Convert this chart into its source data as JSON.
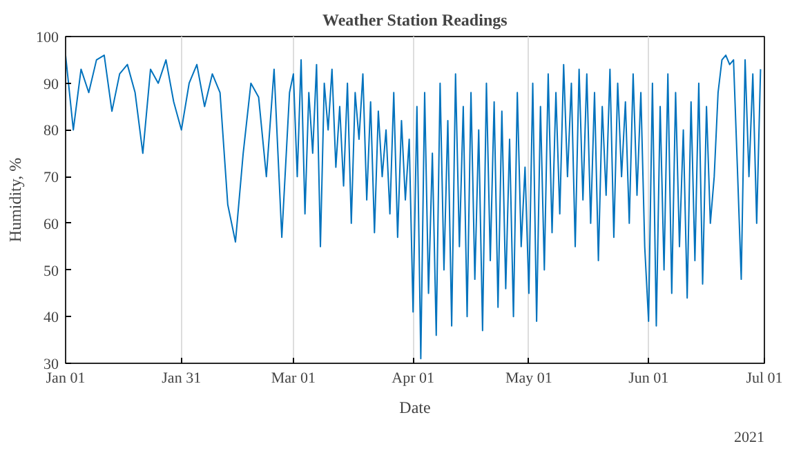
{
  "chart_data": {
    "type": "line",
    "title": "Weather Station Readings",
    "xlabel": "Date",
    "ylabel": "Humidity, %",
    "annotations": [
      "2021"
    ],
    "xlim": [
      "2021-01-01",
      "2021-07-01"
    ],
    "xticks": [
      {
        "value": "2021-01-01",
        "label": "Jan 01"
      },
      {
        "value": "2021-01-31",
        "label": "Jan 31"
      },
      {
        "value": "2021-03-01",
        "label": "Mar 01"
      },
      {
        "value": "2021-04-01",
        "label": "Apr 01"
      },
      {
        "value": "2021-05-01",
        "label": "May 01"
      },
      {
        "value": "2021-06-01",
        "label": "Jun 01"
      },
      {
        "value": "2021-07-01",
        "label": "Jul 01"
      }
    ],
    "ylim": [
      30,
      100
    ],
    "yticks": [
      30,
      40,
      50,
      60,
      70,
      80,
      90,
      100
    ],
    "grid": "x",
    "marker": "none",
    "line_style": "solid",
    "x": [
      "2021-01-01",
      "2021-01-03",
      "2021-01-05",
      "2021-01-07",
      "2021-01-09",
      "2021-01-11",
      "2021-01-13",
      "2021-01-15",
      "2021-01-17",
      "2021-01-19",
      "2021-01-21",
      "2021-01-23",
      "2021-01-25",
      "2021-01-27",
      "2021-01-29",
      "2021-01-31",
      "2021-02-02",
      "2021-02-04",
      "2021-02-06",
      "2021-02-08",
      "2021-02-10",
      "2021-02-12",
      "2021-02-14",
      "2021-02-16",
      "2021-02-18",
      "2021-02-20",
      "2021-02-22",
      "2021-02-24",
      "2021-02-26",
      "2021-02-28",
      "2021-03-01",
      "2021-03-02",
      "2021-03-03",
      "2021-03-04",
      "2021-03-05",
      "2021-03-06",
      "2021-03-07",
      "2021-03-08",
      "2021-03-09",
      "2021-03-10",
      "2021-03-11",
      "2021-03-12",
      "2021-03-13",
      "2021-03-14",
      "2021-03-15",
      "2021-03-16",
      "2021-03-17",
      "2021-03-18",
      "2021-03-19",
      "2021-03-20",
      "2021-03-21",
      "2021-03-22",
      "2021-03-23",
      "2021-03-24",
      "2021-03-25",
      "2021-03-26",
      "2021-03-27",
      "2021-03-28",
      "2021-03-29",
      "2021-03-30",
      "2021-03-31",
      "2021-04-01",
      "2021-04-02",
      "2021-04-03",
      "2021-04-04",
      "2021-04-05",
      "2021-04-06",
      "2021-04-07",
      "2021-04-08",
      "2021-04-09",
      "2021-04-10",
      "2021-04-11",
      "2021-04-12",
      "2021-04-13",
      "2021-04-14",
      "2021-04-15",
      "2021-04-16",
      "2021-04-17",
      "2021-04-18",
      "2021-04-19",
      "2021-04-20",
      "2021-04-21",
      "2021-04-22",
      "2021-04-23",
      "2021-04-24",
      "2021-04-25",
      "2021-04-26",
      "2021-04-27",
      "2021-04-28",
      "2021-04-29",
      "2021-04-30",
      "2021-05-01",
      "2021-05-02",
      "2021-05-03",
      "2021-05-04",
      "2021-05-05",
      "2021-05-06",
      "2021-05-07",
      "2021-05-08",
      "2021-05-09",
      "2021-05-10",
      "2021-05-11",
      "2021-05-12",
      "2021-05-13",
      "2021-05-14",
      "2021-05-15",
      "2021-05-16",
      "2021-05-17",
      "2021-05-18",
      "2021-05-19",
      "2021-05-20",
      "2021-05-21",
      "2021-05-22",
      "2021-05-23",
      "2021-05-24",
      "2021-05-25",
      "2021-05-26",
      "2021-05-27",
      "2021-05-28",
      "2021-05-29",
      "2021-05-30",
      "2021-05-31",
      "2021-06-01",
      "2021-06-02",
      "2021-06-03",
      "2021-06-04",
      "2021-06-05",
      "2021-06-06",
      "2021-06-07",
      "2021-06-08",
      "2021-06-09",
      "2021-06-10",
      "2021-06-11",
      "2021-06-12",
      "2021-06-13",
      "2021-06-14",
      "2021-06-15",
      "2021-06-16",
      "2021-06-17",
      "2021-06-18",
      "2021-06-19",
      "2021-06-20",
      "2021-06-21",
      "2021-06-22",
      "2021-06-23",
      "2021-06-24",
      "2021-06-25",
      "2021-06-26",
      "2021-06-27",
      "2021-06-28",
      "2021-06-29",
      "2021-06-30"
    ],
    "series": [
      {
        "color": "#0072bd",
        "values": [
          96,
          80,
          93,
          88,
          95,
          96,
          84,
          92,
          94,
          88,
          75,
          93,
          90,
          95,
          86,
          80,
          90,
          94,
          85,
          92,
          88,
          64,
          56,
          75,
          90,
          87,
          70,
          93,
          57,
          88,
          92,
          70,
          95,
          62,
          88,
          75,
          94,
          55,
          90,
          80,
          93,
          72,
          85,
          68,
          90,
          60,
          88,
          78,
          92,
          65,
          86,
          58,
          84,
          70,
          80,
          62,
          88,
          57,
          82,
          65,
          78,
          41,
          85,
          31,
          88,
          45,
          75,
          36,
          90,
          50,
          82,
          38,
          92,
          55,
          85,
          40,
          88,
          48,
          80,
          37,
          90,
          52,
          86,
          42,
          84,
          46,
          78,
          40,
          88,
          55,
          72,
          45,
          90,
          39,
          85,
          50,
          92,
          58,
          88,
          62,
          94,
          70,
          90,
          55,
          93,
          65,
          92,
          60,
          88,
          52,
          85,
          66,
          93,
          57,
          90,
          70,
          86,
          60,
          92,
          66,
          88,
          55,
          39,
          90,
          38,
          85,
          50,
          92,
          45,
          88,
          55,
          80,
          44,
          86,
          52,
          90,
          47,
          85,
          60,
          70,
          88,
          95,
          96,
          94,
          95,
          72,
          48,
          95,
          70,
          92,
          60,
          93
        ]
      }
    ]
  }
}
